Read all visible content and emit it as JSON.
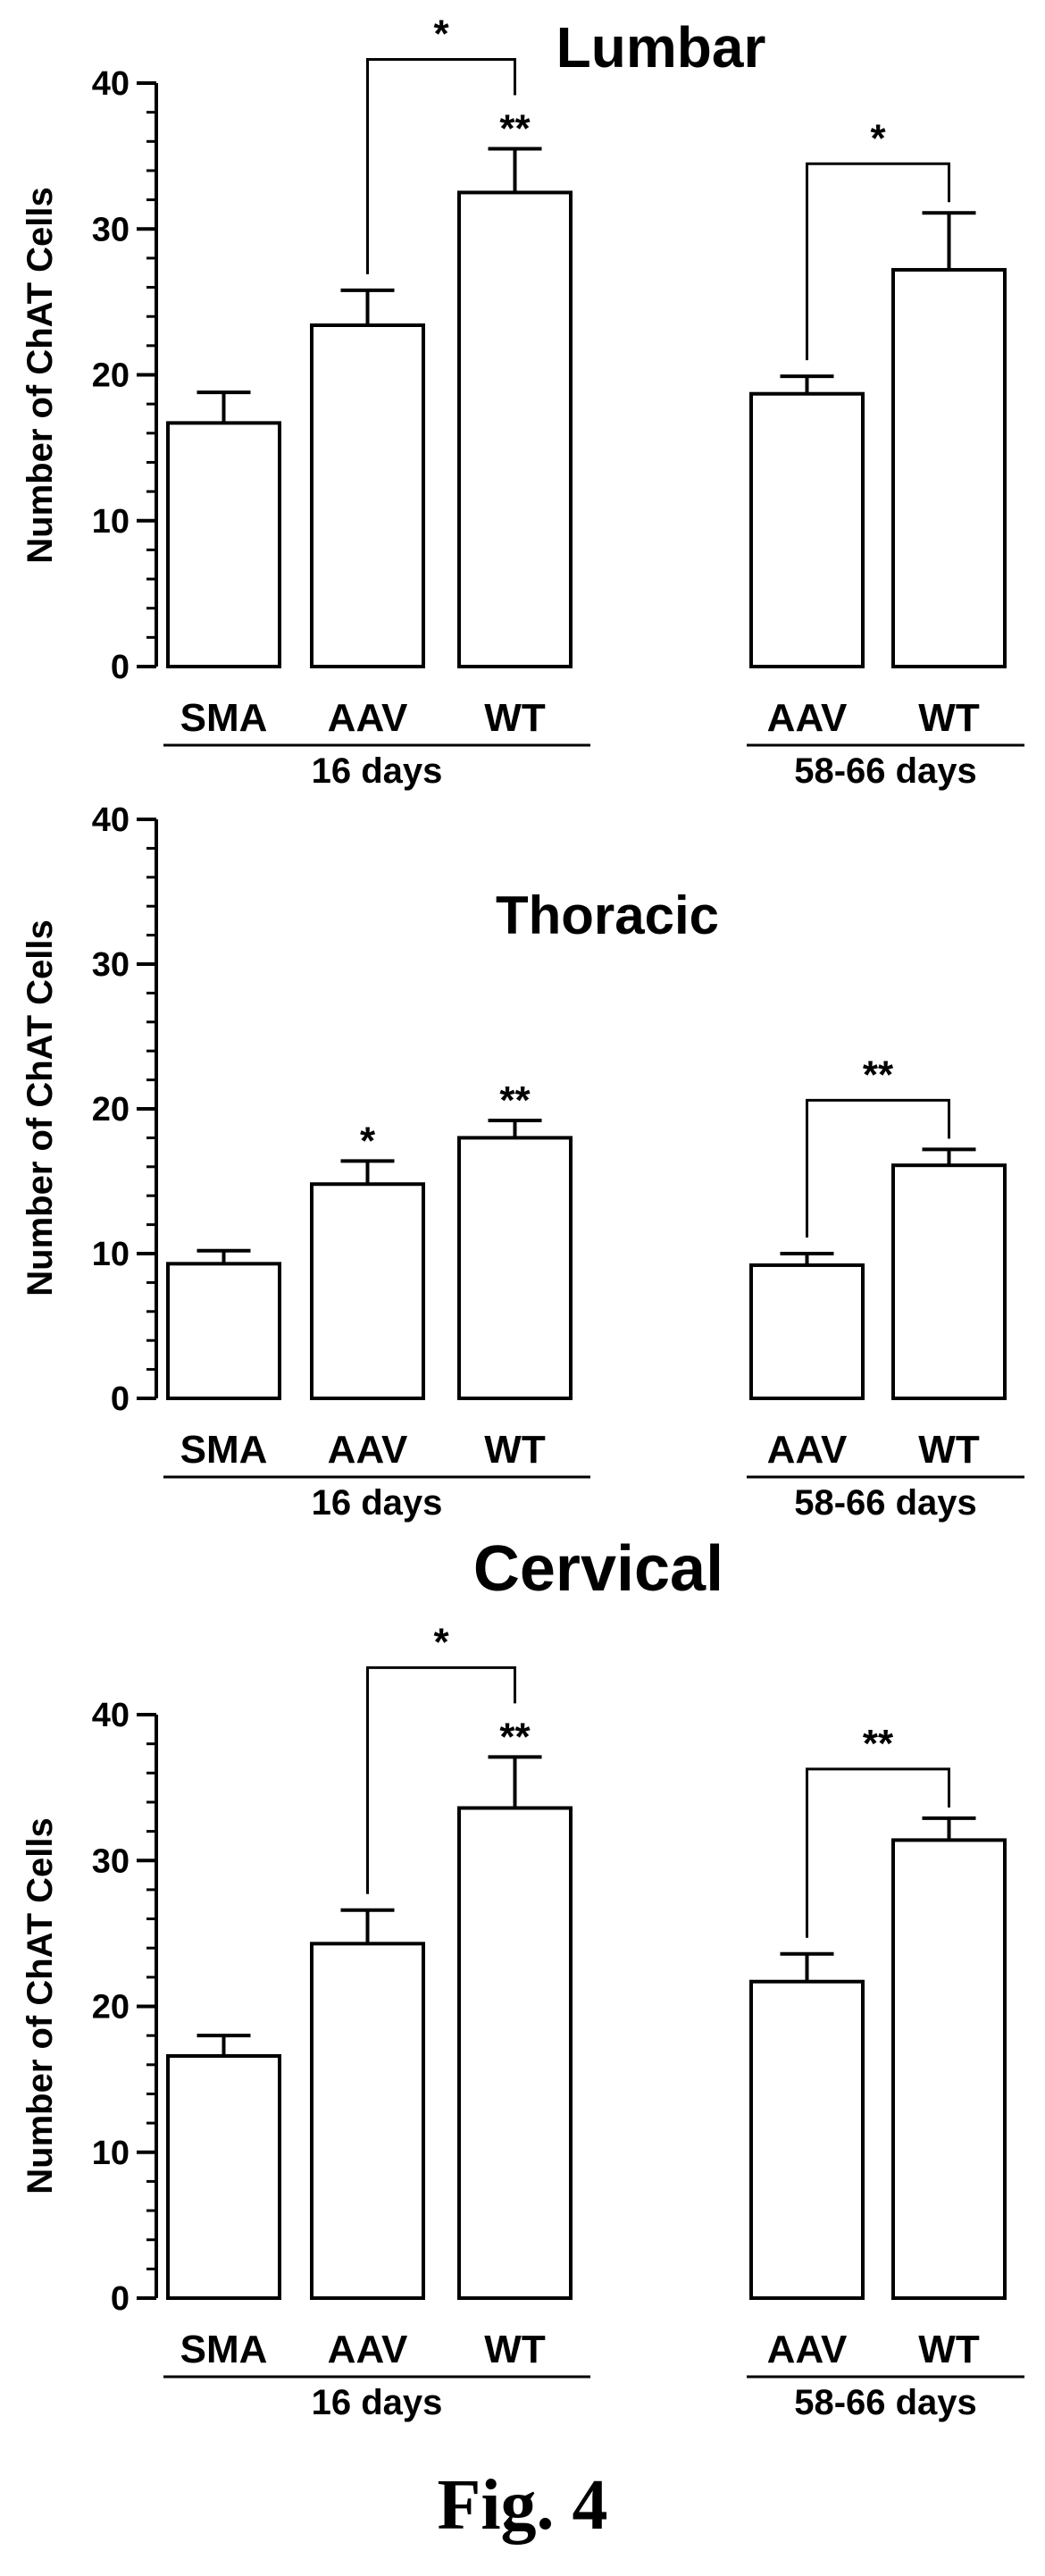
{
  "figure_label": "Fig. 4",
  "chart_data": [
    {
      "type": "bar",
      "title": "Lumbar",
      "ylabel": "Number of ChAT Cells",
      "ylim": [
        0,
        40
      ],
      "yticks": [
        0,
        10,
        20,
        30,
        40
      ],
      "groups": [
        {
          "label": "16 days",
          "categories": [
            "SMA",
            "AAV",
            "WT"
          ]
        },
        {
          "label": "58-66 days",
          "categories": [
            "AAV",
            "WT"
          ]
        }
      ],
      "categories": [
        "SMA",
        "AAV",
        "WT",
        "AAV",
        "WT"
      ],
      "values": [
        16.7,
        23.4,
        32.5,
        18.7,
        27.2
      ],
      "errors": [
        2.1,
        2.4,
        3.0,
        1.2,
        3.9
      ],
      "bar_marks": [
        "",
        "",
        "**",
        "",
        ""
      ],
      "brackets": [
        {
          "from": 1,
          "to": 2,
          "label": "*"
        },
        {
          "from": 3,
          "to": 4,
          "label": "*"
        }
      ]
    },
    {
      "type": "bar",
      "title": "Thoracic",
      "ylabel": "Number of ChAT Cells",
      "ylim": [
        0,
        40
      ],
      "yticks": [
        0,
        10,
        20,
        30,
        40
      ],
      "groups": [
        {
          "label": "16 days",
          "categories": [
            "SMA",
            "AAV",
            "WT"
          ]
        },
        {
          "label": "58-66 days",
          "categories": [
            "AAV",
            "WT"
          ]
        }
      ],
      "categories": [
        "SMA",
        "AAV",
        "WT",
        "AAV",
        "WT"
      ],
      "values": [
        9.3,
        14.8,
        18.0,
        9.2,
        16.1
      ],
      "errors": [
        0.9,
        1.6,
        1.2,
        0.8,
        1.1
      ],
      "bar_marks": [
        "",
        "*",
        "**",
        "",
        ""
      ],
      "brackets": [
        {
          "from": 3,
          "to": 4,
          "label": "**"
        }
      ]
    },
    {
      "type": "bar",
      "title": "Cervical",
      "ylabel": "Number of ChAT Cells",
      "ylim": [
        0,
        40
      ],
      "yticks": [
        0,
        10,
        20,
        30,
        40
      ],
      "groups": [
        {
          "label": "16 days",
          "categories": [
            "SMA",
            "AAV",
            "WT"
          ]
        },
        {
          "label": "58-66 days",
          "categories": [
            "AAV",
            "WT"
          ]
        }
      ],
      "categories": [
        "SMA",
        "AAV",
        "WT",
        "AAV",
        "WT"
      ],
      "values": [
        16.6,
        24.3,
        33.6,
        21.7,
        31.4
      ],
      "errors": [
        1.4,
        2.3,
        3.5,
        1.9,
        1.5
      ],
      "bar_marks": [
        "",
        "",
        "**",
        "",
        ""
      ],
      "brackets": [
        {
          "from": 1,
          "to": 2,
          "label": "*"
        },
        {
          "from": 3,
          "to": 4,
          "label": "**"
        }
      ]
    }
  ]
}
